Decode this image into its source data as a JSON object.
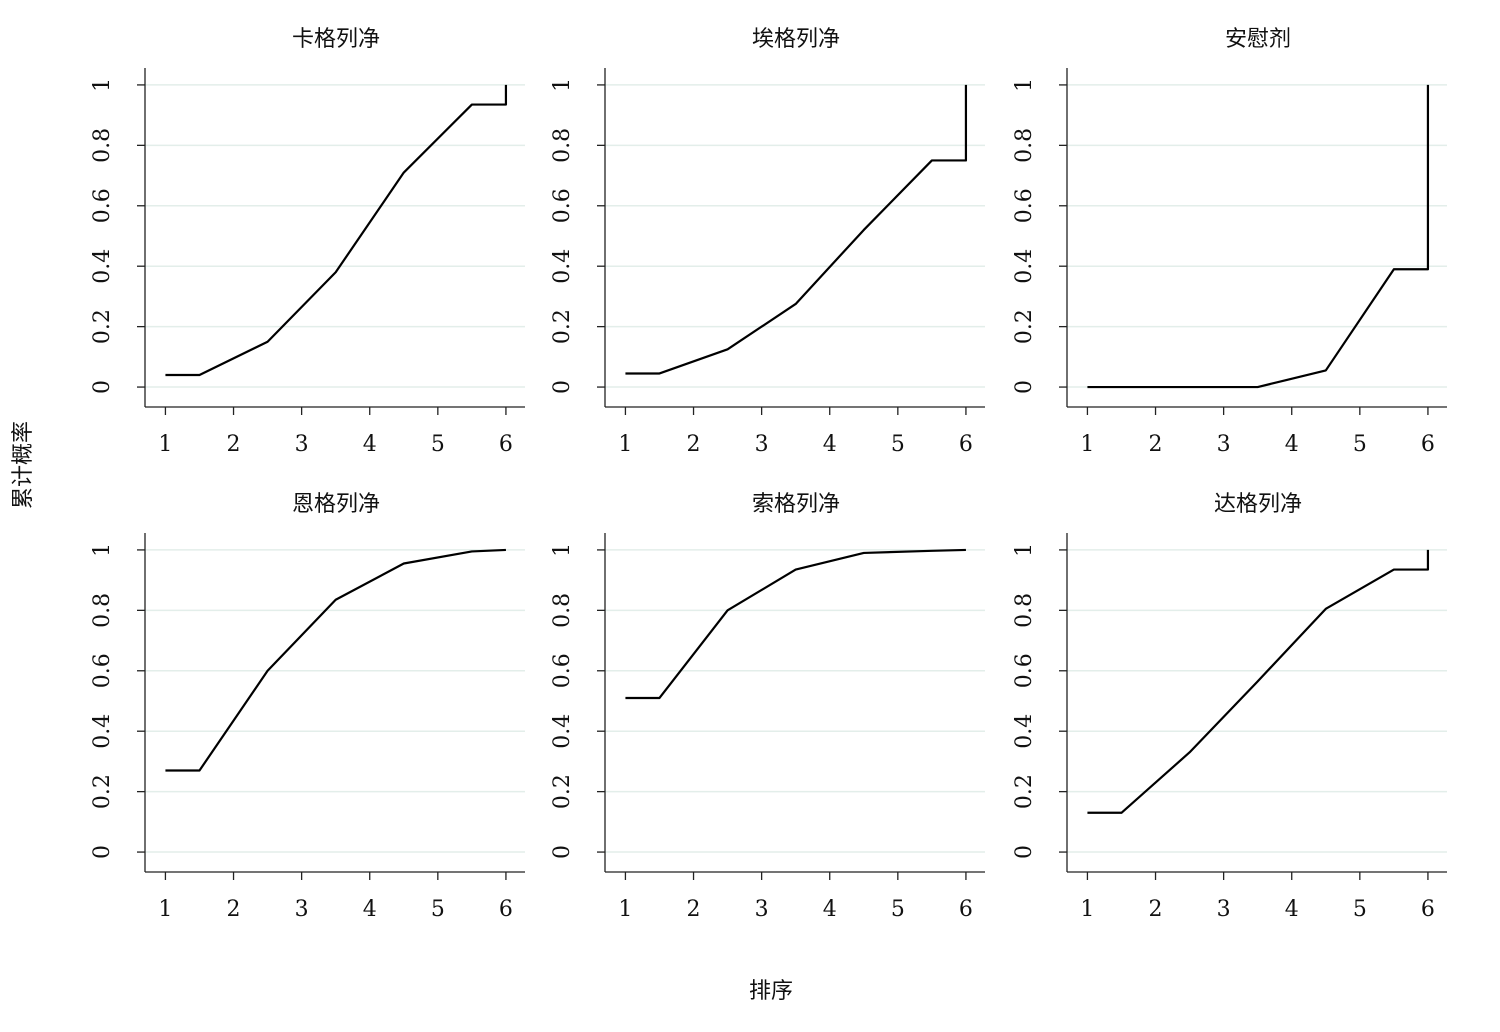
{
  "xlabel": "排序",
  "ylabel": "累计概率",
  "chart_data": [
    {
      "type": "line",
      "title": "卡格列净",
      "x": [
        1,
        1.5,
        2.5,
        3.5,
        4.5,
        5.5,
        6,
        6
      ],
      "series": [
        {
          "color": "#000000",
          "values": [
            0.04,
            0.04,
            0.15,
            0.38,
            0.71,
            0.935,
            0.935,
            1
          ]
        }
      ],
      "xlim": [
        0.7,
        6.28
      ],
      "ylim": [
        -0.066,
        1.056
      ],
      "xticks": [
        1,
        2,
        3,
        4,
        5,
        6
      ],
      "yticks": [
        0,
        0.2,
        0.4,
        0.6,
        0.8,
        1
      ],
      "grid": true
    },
    {
      "type": "line",
      "title": "埃格列净",
      "x": [
        1,
        1.5,
        2.5,
        3.5,
        4.5,
        5.5,
        6,
        6
      ],
      "series": [
        {
          "color": "#000000",
          "values": [
            0.045,
            0.045,
            0.125,
            0.275,
            0.52,
            0.75,
            0.75,
            1
          ]
        }
      ],
      "xlim": [
        0.7,
        6.28
      ],
      "ylim": [
        -0.066,
        1.056
      ],
      "xticks": [
        1,
        2,
        3,
        4,
        5,
        6
      ],
      "yticks": [
        0,
        0.2,
        0.4,
        0.6,
        0.8,
        1
      ],
      "grid": true
    },
    {
      "type": "line",
      "title": "安慰剂",
      "x": [
        1,
        1.5,
        2.5,
        3.5,
        4.5,
        5.5,
        6,
        6
      ],
      "series": [
        {
          "color": "#000000",
          "values": [
            0,
            0,
            0,
            0,
            0.055,
            0.39,
            0.39,
            1
          ]
        }
      ],
      "xlim": [
        0.7,
        6.28
      ],
      "ylim": [
        -0.066,
        1.056
      ],
      "xticks": [
        1,
        2,
        3,
        4,
        5,
        6
      ],
      "yticks": [
        0,
        0.2,
        0.4,
        0.6,
        0.8,
        1
      ],
      "grid": true
    },
    {
      "type": "line",
      "title": "恩格列净",
      "x": [
        1,
        1.5,
        2.5,
        3.5,
        4.5,
        5.5,
        6,
        6
      ],
      "series": [
        {
          "color": "#000000",
          "values": [
            0.27,
            0.27,
            0.6,
            0.835,
            0.955,
            0.995,
            1,
            1
          ]
        }
      ],
      "xlim": [
        0.7,
        6.28
      ],
      "ylim": [
        -0.066,
        1.056
      ],
      "xticks": [
        1,
        2,
        3,
        4,
        5,
        6
      ],
      "yticks": [
        0,
        0.2,
        0.4,
        0.6,
        0.8,
        1
      ],
      "grid": true
    },
    {
      "type": "line",
      "title": "索格列净",
      "x": [
        1,
        1.5,
        2.5,
        3.5,
        4.5,
        5.5,
        6,
        6
      ],
      "series": [
        {
          "color": "#000000",
          "values": [
            0.51,
            0.51,
            0.8,
            0.935,
            0.99,
            0.997,
            1,
            1
          ]
        }
      ],
      "xlim": [
        0.7,
        6.28
      ],
      "ylim": [
        -0.066,
        1.056
      ],
      "xticks": [
        1,
        2,
        3,
        4,
        5,
        6
      ],
      "yticks": [
        0,
        0.2,
        0.4,
        0.6,
        0.8,
        1
      ],
      "grid": true
    },
    {
      "type": "line",
      "title": "达格列净",
      "x": [
        1,
        1.5,
        2.5,
        3.5,
        4.5,
        5.5,
        6,
        6
      ],
      "series": [
        {
          "color": "#000000",
          "values": [
            0.13,
            0.13,
            0.33,
            0.565,
            0.805,
            0.935,
            0.935,
            1
          ]
        }
      ],
      "xlim": [
        0.7,
        6.28
      ],
      "ylim": [
        -0.066,
        1.056
      ],
      "xticks": [
        1,
        2,
        3,
        4,
        5,
        6
      ],
      "yticks": [
        0,
        0.2,
        0.4,
        0.6,
        0.8,
        1
      ],
      "grid": true
    }
  ]
}
